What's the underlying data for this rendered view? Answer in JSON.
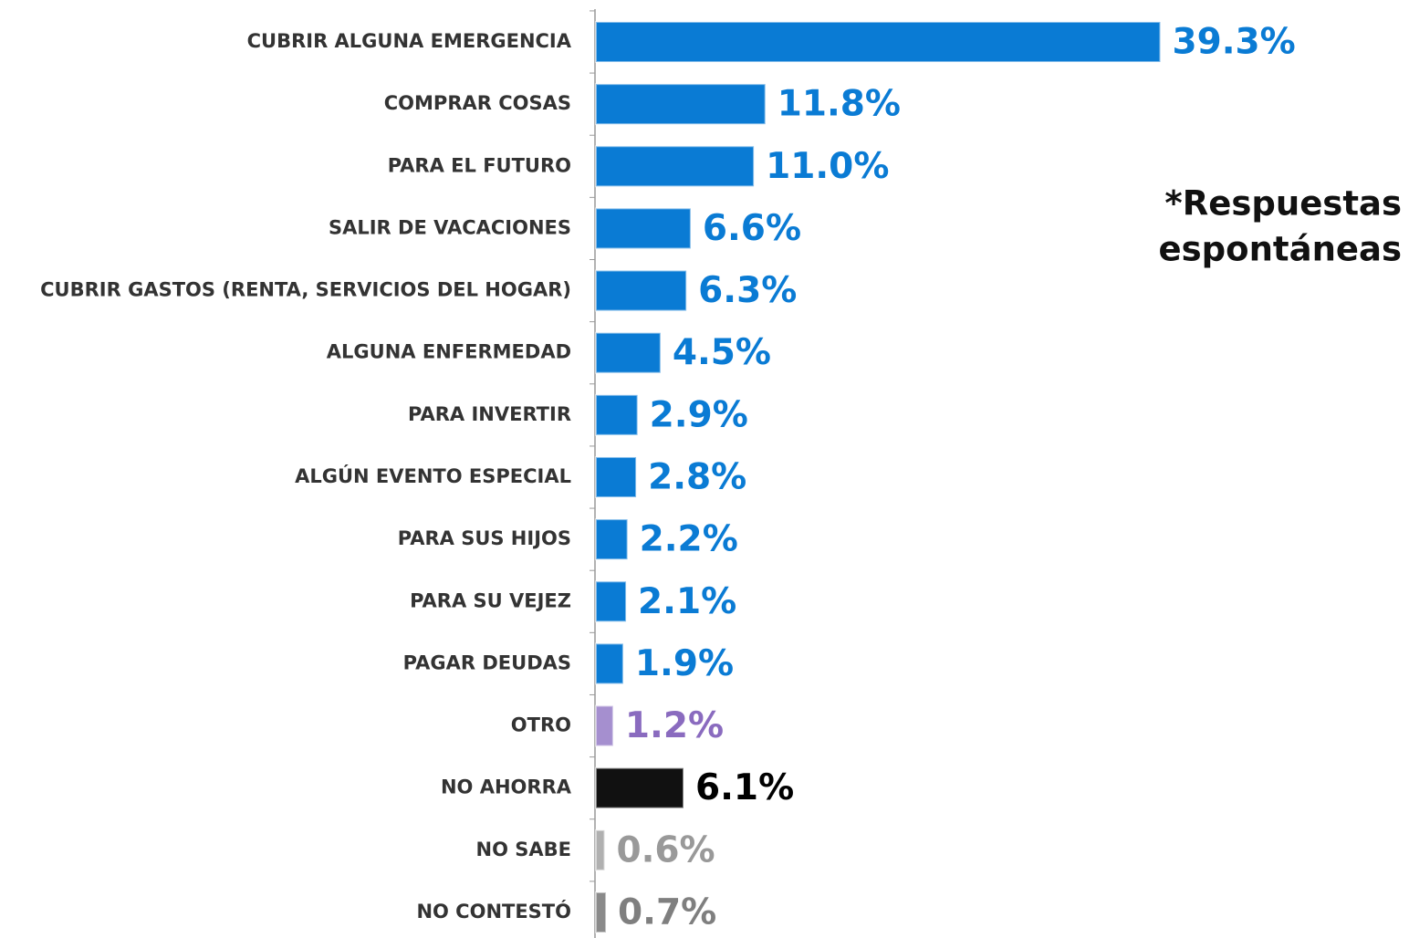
{
  "chart_data": {
    "type": "hbar",
    "categories": [
      "CUBRIR ALGUNA EMERGENCIA",
      "COMPRAR COSAS",
      "PARA EL FUTURO",
      "SALIR DE VACACIONES",
      "CUBRIR GASTOS (RENTA, SERVICIOS DEL HOGAR)",
      "ALGUNA ENFERMEDAD",
      "PARA INVERTIR",
      "ALGÚN EVENTO ESPECIAL",
      "PARA SUS HIJOS",
      "PARA SU VEJEZ",
      "PAGAR DEUDAS",
      "OTRO",
      "NO AHORRA",
      "NO SABE",
      "NO CONTESTÓ"
    ],
    "values": [
      39.3,
      11.8,
      11.0,
      6.6,
      6.3,
      4.5,
      2.9,
      2.8,
      2.2,
      2.1,
      1.9,
      1.2,
      6.1,
      0.6,
      0.7
    ],
    "value_labels": [
      "39.3%",
      "11.8%",
      "11.0%",
      "6.6%",
      "6.3%",
      "4.5%",
      "2.9%",
      "2.8%",
      "2.2%",
      "2.1%",
      "1.9%",
      "1.2%",
      "6.1%",
      "0.6%",
      "0.7%"
    ],
    "colors": [
      "#0a7bd4",
      "#0a7bd4",
      "#0a7bd4",
      "#0a7bd4",
      "#0a7bd4",
      "#0a7bd4",
      "#0a7bd4",
      "#0a7bd4",
      "#0a7bd4",
      "#0a7bd4",
      "#0a7bd4",
      "#a58fcf",
      "#111111",
      "#b0b0b0",
      "#8a8a8a"
    ],
    "label_colors": [
      "#0a7bd4",
      "#0a7bd4",
      "#0a7bd4",
      "#0a7bd4",
      "#0a7bd4",
      "#0a7bd4",
      "#0a7bd4",
      "#0a7bd4",
      "#0a7bd4",
      "#0a7bd4",
      "#0a7bd4",
      "#8a6bbf",
      "#000000",
      "#999999",
      "#7f7f7f"
    ],
    "xlim": [
      0,
      57
    ],
    "annotation": [
      "*Respuestas",
      "espontáneas"
    ]
  }
}
